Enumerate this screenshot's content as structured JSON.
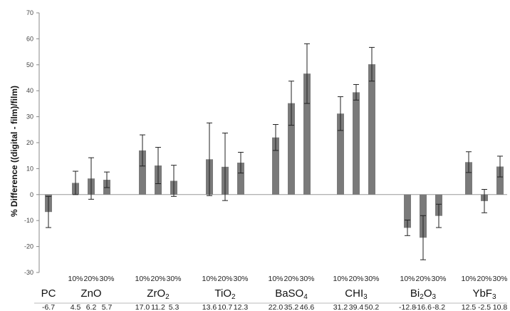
{
  "chart_data": {
    "type": "bar",
    "ylabel": "% Difference ((digital - film)/film)",
    "ylim": [
      -30,
      70
    ],
    "yticks": [
      "70",
      "60",
      "50",
      "40",
      "30",
      "20",
      "10",
      "0",
      "-10",
      "-20",
      "-30"
    ],
    "grid": false,
    "bar_color": "#7a7a7a",
    "groups": [
      {
        "name": "PC",
        "sub": "",
        "pcts": [
          ""
        ],
        "values": [
          -6.7
        ],
        "err": [
          6
        ],
        "labels": [
          "-6.7"
        ]
      },
      {
        "name": "ZnO",
        "sub": "",
        "pcts": [
          "10%",
          "20%",
          "30%"
        ],
        "values": [
          4.5,
          6.2,
          5.7
        ],
        "err": [
          4.5,
          8,
          3
        ],
        "labels": [
          "4.5",
          "6.2",
          "5.7"
        ]
      },
      {
        "name": "ZrO",
        "sub": "2",
        "pcts": [
          "10%",
          "20%",
          "30%"
        ],
        "values": [
          17.0,
          11.2,
          5.3
        ],
        "err": [
          6,
          7,
          6
        ],
        "labels": [
          "17.0",
          "11.2",
          "5.3"
        ]
      },
      {
        "name": "TiO",
        "sub": "2",
        "pcts": [
          "10%",
          "20%",
          "30%"
        ],
        "values": [
          13.6,
          10.7,
          12.3
        ],
        "err": [
          14,
          13,
          4
        ],
        "labels": [
          "13.6",
          "10.7",
          "12.3"
        ]
      },
      {
        "name": "BaSO",
        "sub": "4",
        "pcts": [
          "10%",
          "20%",
          "30%"
        ],
        "values": [
          22.0,
          35.2,
          46.6
        ],
        "err": [
          5,
          8.5,
          11.5
        ],
        "labels": [
          "22.0",
          "35.2",
          "46.6"
        ]
      },
      {
        "name": "CHI",
        "sub": "3",
        "pcts": [
          "10%",
          "20%",
          "30%"
        ],
        "values": [
          31.2,
          39.4,
          50.2
        ],
        "err": [
          6.5,
          3,
          6.5
        ],
        "labels": [
          "31.2",
          "39.4",
          "50.2"
        ]
      },
      {
        "name": "Bi",
        "sub": "2",
        "tail": "O",
        "sub2": "3",
        "pcts": [
          "10%",
          "20%",
          "30%"
        ],
        "values": [
          -12.8,
          -16.6,
          -8.2
        ],
        "err": [
          3,
          8.5,
          4.5
        ],
        "labels": [
          "-12.8",
          "-16.6",
          "-8.2"
        ]
      },
      {
        "name": "YbF",
        "sub": "3",
        "pcts": [
          "10%",
          "20%",
          "30%"
        ],
        "values": [
          12.5,
          -2.5,
          10.8
        ],
        "err": [
          4,
          4.5,
          4
        ],
        "labels": [
          "12.5",
          "-2.5",
          "10.8"
        ]
      }
    ]
  }
}
